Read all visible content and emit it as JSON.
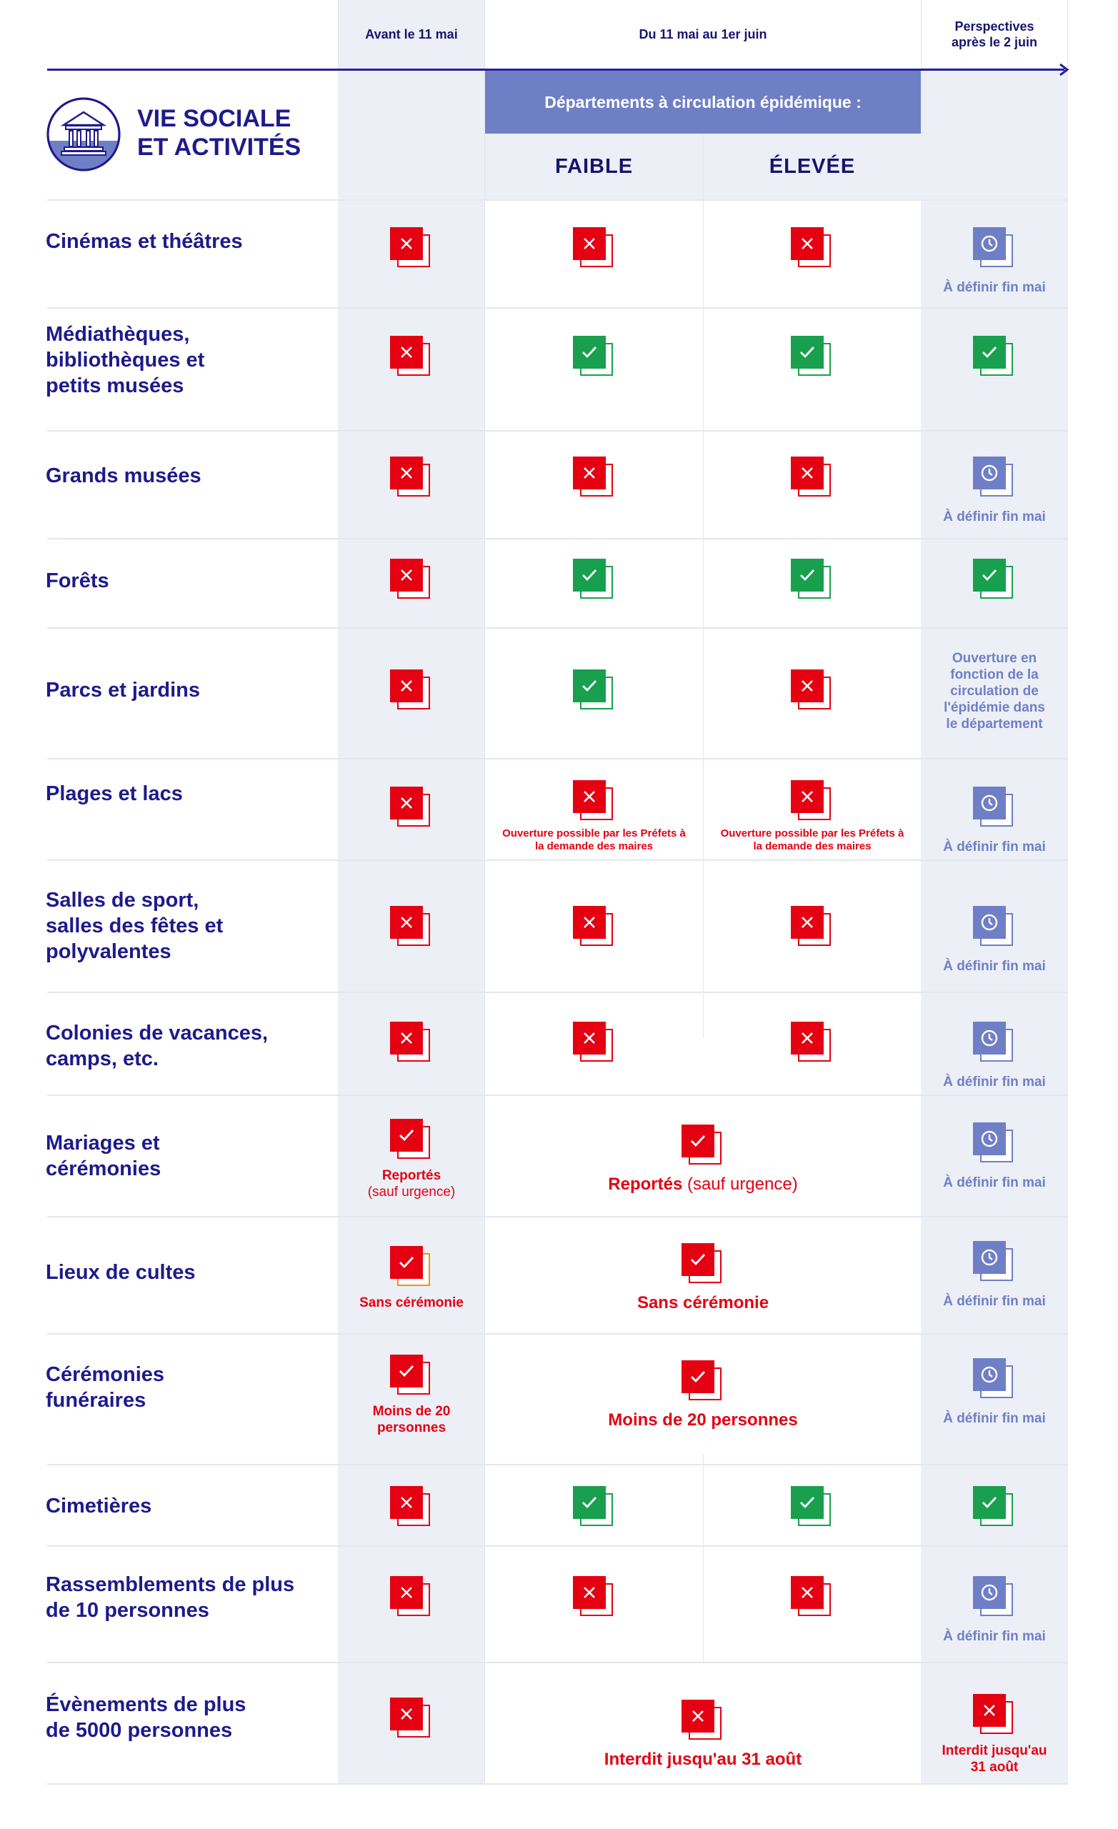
{
  "header": {
    "col_before": "Avant le 11 mai",
    "col_between": "Du 11 mai au 1er juin",
    "col_after": "Perspectives après le 2 juin",
    "band": "Départements à circulation épidémique :",
    "faible": "FAIBLE",
    "elevee": "ÉLEVÉE"
  },
  "section": {
    "title": "VIE SOCIALE ET ACTIVITÉS",
    "icon": "building-icon"
  },
  "notes": {
    "tbd": "À définir fin mai",
    "prefets": "Ouverture possible par les Préfets à la demande des maires",
    "reportes": "Reportés",
    "sauf_urgence": "(sauf urgence)",
    "sans_ceremonie": "Sans cérémonie",
    "moins_20": "Moins de 20 personnes",
    "interdit_31_aout": "Interdit jusqu'au 31 août",
    "parcs_perspective": "Ouverture en fonction de la circulation de l'épidémie dans le département"
  },
  "rows": [
    {
      "label": "Cinémas et théâtres",
      "before": "no",
      "faible": "no",
      "elevee": "no",
      "after": "tbd"
    },
    {
      "label": "Médiathèques, bibliothèques et petits musées",
      "before": "no",
      "faible": "yes",
      "elevee": "yes",
      "after": "yes"
    },
    {
      "label": "Grands musées",
      "before": "no",
      "faible": "no",
      "elevee": "no",
      "after": "tbd"
    },
    {
      "label": "Forêts",
      "before": "no",
      "faible": "yes",
      "elevee": "yes",
      "after": "yes"
    },
    {
      "label": "Parcs et jardins",
      "before": "no",
      "faible": "yes",
      "elevee": "no",
      "after": "text"
    },
    {
      "label": "Plages et lacs",
      "before": "no",
      "faible": "no-note",
      "elevee": "no-note",
      "after": "tbd"
    },
    {
      "label": "Salles de sport, salles des fêtes et polyvalentes",
      "before": "no",
      "faible": "no",
      "elevee": "no",
      "after": "tbd"
    },
    {
      "label": "Colonies de vacances, camps, etc.",
      "before": "no",
      "faible": "no",
      "elevee": "no",
      "after": "tbd"
    },
    {
      "label": "Mariages et cérémonies",
      "before": "ok",
      "between": "ok",
      "after": "tbd"
    },
    {
      "label": "Lieux de cultes",
      "before": "ok",
      "between": "ok",
      "after": "tbd"
    },
    {
      "label": "Cérémonies funéraires",
      "before": "ok",
      "between": "ok",
      "after": "tbd"
    },
    {
      "label": "Cimetières",
      "before": "no",
      "faible": "yes",
      "elevee": "yes",
      "after": "yes"
    },
    {
      "label": "Rassemblements de plus de 10 personnes",
      "before": "no",
      "faible": "no",
      "elevee": "no",
      "after": "tbd"
    },
    {
      "label": "Évènements de plus de 5000 personnes",
      "before": "no",
      "between": "no",
      "after": "no"
    }
  ],
  "colors": {
    "navy": "#1e1a8c",
    "red": "#e50012",
    "green": "#18a04e",
    "periwinkle": "#6f7fc6",
    "orange": "#f29400",
    "shade": "#eceff6"
  }
}
